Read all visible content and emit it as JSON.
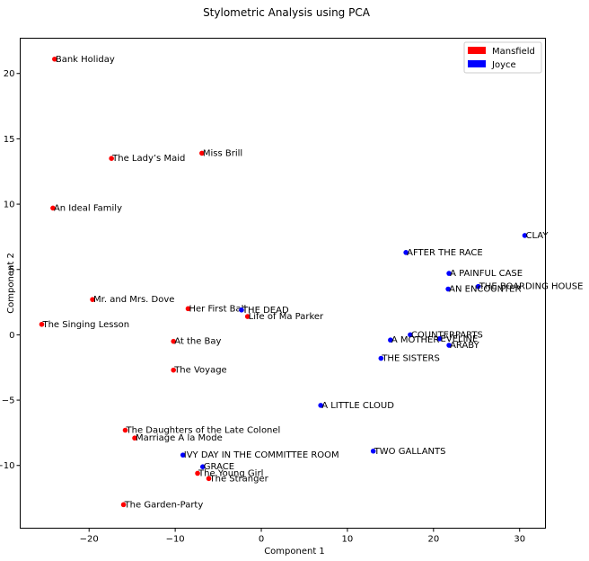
{
  "chart_data": {
    "type": "scatter",
    "title": "Stylometric Analysis using PCA",
    "xlabel": "Component 1",
    "ylabel": "Component 2",
    "xlim": [
      -28,
      33
    ],
    "ylim": [
      -14.8,
      22.7
    ],
    "xticks": [
      -20,
      -10,
      0,
      10,
      20,
      30
    ],
    "yticks": [
      -10,
      -5,
      0,
      5,
      10,
      15,
      20
    ],
    "grid": false,
    "legend": {
      "placement": "top-right"
    },
    "series": [
      {
        "name": "Mansfield",
        "color": "#ff0000",
        "points": [
          {
            "label": "Bank Holiday",
            "x": -24.0,
            "y": 21.1
          },
          {
            "label": "The Lady’s Maid",
            "x": -17.4,
            "y": 13.5
          },
          {
            "label": "Miss Brill",
            "x": -6.9,
            "y": 13.9
          },
          {
            "label": "An Ideal Family",
            "x": -24.2,
            "y": 9.7
          },
          {
            "label": "Mr. and Mrs. Dove",
            "x": -19.6,
            "y": 2.7
          },
          {
            "label": "The Singing Lesson",
            "x": -25.5,
            "y": 0.8
          },
          {
            "label": "Her First Ball",
            "x": -8.5,
            "y": 2.0
          },
          {
            "label": "Life of Ma Parker",
            "x": -1.6,
            "y": 1.4
          },
          {
            "label": "At the Bay",
            "x": -10.2,
            "y": -0.5
          },
          {
            "label": "The Voyage",
            "x": -10.2,
            "y": -2.7
          },
          {
            "label": "The Daughters of the Late Colonel",
            "x": -15.8,
            "y": -7.3
          },
          {
            "label": "Marriage A  la Mode",
            "x": -14.7,
            "y": -7.9
          },
          {
            "label": "The Young Girl",
            "x": -7.4,
            "y": -10.6
          },
          {
            "label": "The Stranger",
            "x": -6.1,
            "y": -11.0
          },
          {
            "label": "The Garden-Party",
            "x": -16.0,
            "y": -13.0
          }
        ]
      },
      {
        "name": "Joyce",
        "color": "#0000ff",
        "points": [
          {
            "label": "CLAY",
            "x": 30.6,
            "y": 7.6
          },
          {
            "label": "AFTER THE RACE",
            "x": 16.8,
            "y": 6.3
          },
          {
            "label": "A PAINFUL CASE",
            "x": 21.8,
            "y": 4.7
          },
          {
            "label": "THE BOARDING HOUSE",
            "x": 25.2,
            "y": 3.7
          },
          {
            "label": "AN ENCOUNTER",
            "x": 21.7,
            "y": 3.5
          },
          {
            "label": "THE DEAD",
            "x": -2.3,
            "y": 1.9
          },
          {
            "label": "COUNTERPARTS",
            "x": 17.3,
            "y": 0.0
          },
          {
            "label": "EVELINE",
            "x": 20.7,
            "y": -0.3
          },
          {
            "label": "A MOTHER",
            "x": 15.0,
            "y": -0.4
          },
          {
            "label": "ARABY",
            "x": 21.8,
            "y": -0.8
          },
          {
            "label": "THE SISTERS",
            "x": 13.9,
            "y": -1.8
          },
          {
            "label": "A LITTLE CLOUD",
            "x": 6.9,
            "y": -5.4
          },
          {
            "label": "TWO GALLANTS",
            "x": 13.0,
            "y": -8.9
          },
          {
            "label": "IVY DAY IN THE COMMITTEE ROOM",
            "x": -9.1,
            "y": -9.2
          },
          {
            "label": "GRACE",
            "x": -6.8,
            "y": -10.1
          }
        ]
      }
    ]
  }
}
